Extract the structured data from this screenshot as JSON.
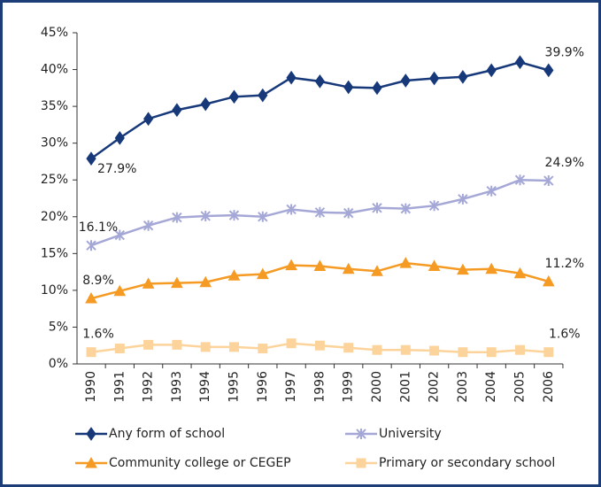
{
  "chart_data": {
    "type": "line",
    "categories": [
      "1990",
      "1991",
      "1992",
      "1993",
      "1994",
      "1995",
      "1996",
      "1997",
      "1998",
      "1999",
      "2000",
      "2001",
      "2002",
      "2003",
      "2004",
      "2005",
      "2006"
    ],
    "ylim": [
      0,
      45
    ],
    "yticks": [
      {
        "value": 0,
        "label": "0%"
      },
      {
        "value": 5,
        "label": "5%"
      },
      {
        "value": 10,
        "label": "10%"
      },
      {
        "value": 15,
        "label": "15%"
      },
      {
        "value": 20,
        "label": "20%"
      },
      {
        "value": 25,
        "label": "25%"
      },
      {
        "value": 30,
        "label": "30%"
      },
      {
        "value": 35,
        "label": "35%"
      },
      {
        "value": 40,
        "label": "40%"
      },
      {
        "value": 45,
        "label": "45%"
      }
    ],
    "grid": false,
    "legend": "bottom",
    "series": [
      {
        "name": "Any form of school",
        "color": "#17397a",
        "marker": "diamond",
        "values": [
          27.9,
          30.7,
          33.3,
          34.5,
          35.3,
          36.3,
          36.5,
          38.9,
          38.4,
          37.6,
          37.5,
          38.5,
          38.8,
          39.0,
          39.9,
          41.0,
          39.9
        ],
        "value_labels": [
          "27.9%",
          null,
          null,
          null,
          null,
          null,
          null,
          null,
          null,
          null,
          null,
          null,
          null,
          null,
          null,
          null,
          "39.9%"
        ]
      },
      {
        "name": "University",
        "color": "#a5a8d6",
        "marker": "star",
        "values": [
          16.1,
          17.5,
          18.8,
          19.9,
          20.1,
          20.2,
          20.0,
          21.0,
          20.6,
          20.5,
          21.2,
          21.1,
          21.5,
          22.4,
          23.5,
          25.0,
          24.9
        ],
        "value_labels": [
          "16.1%",
          null,
          null,
          null,
          null,
          null,
          null,
          null,
          null,
          null,
          null,
          null,
          null,
          null,
          null,
          null,
          "24.9%"
        ]
      },
      {
        "name": "Community college or CEGEP",
        "color": "#f59a23",
        "marker": "triangle",
        "values": [
          8.9,
          9.9,
          10.9,
          11.0,
          11.1,
          12.0,
          12.2,
          13.4,
          13.3,
          12.9,
          12.6,
          13.7,
          13.3,
          12.8,
          12.9,
          12.3,
          11.2
        ],
        "value_labels": [
          "8.9%",
          null,
          null,
          null,
          null,
          null,
          null,
          null,
          null,
          null,
          null,
          null,
          null,
          null,
          null,
          null,
          "11.2%"
        ]
      },
      {
        "name": "Primary or secondary school",
        "color": "#fcd49b",
        "marker": "square",
        "values": [
          1.6,
          2.1,
          2.6,
          2.6,
          2.3,
          2.3,
          2.1,
          2.8,
          2.5,
          2.2,
          1.9,
          1.9,
          1.8,
          1.6,
          1.6,
          1.9,
          1.6
        ],
        "value_labels": [
          "1.6%",
          null,
          null,
          null,
          null,
          null,
          null,
          null,
          null,
          null,
          null,
          null,
          null,
          null,
          null,
          null,
          "1.6%"
        ]
      }
    ]
  }
}
